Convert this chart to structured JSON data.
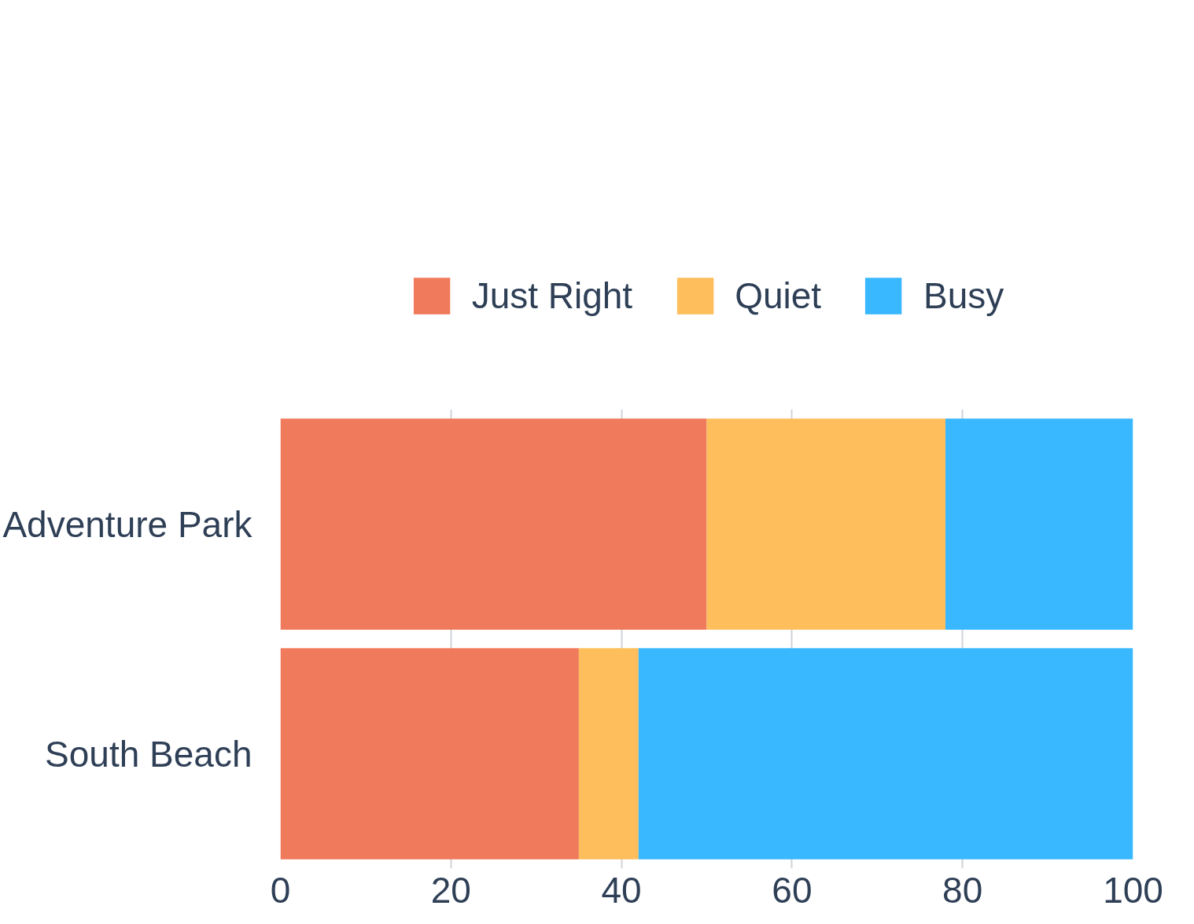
{
  "chart_data": {
    "type": "bar",
    "orientation": "horizontal",
    "stacked": true,
    "categories": [
      "Adventure Park",
      "South Beach"
    ],
    "series": [
      {
        "name": "Just Right",
        "color": "#f07a5c",
        "values": [
          50,
          35
        ]
      },
      {
        "name": "Quiet",
        "color": "#febe5c",
        "values": [
          28,
          7
        ]
      },
      {
        "name": "Busy",
        "color": "#39b8ff",
        "values": [
          22,
          58
        ]
      }
    ],
    "xlim": [
      0,
      100
    ],
    "xticks": [
      0,
      20,
      40,
      60,
      80,
      100
    ],
    "grid": "x",
    "legend": "top"
  }
}
